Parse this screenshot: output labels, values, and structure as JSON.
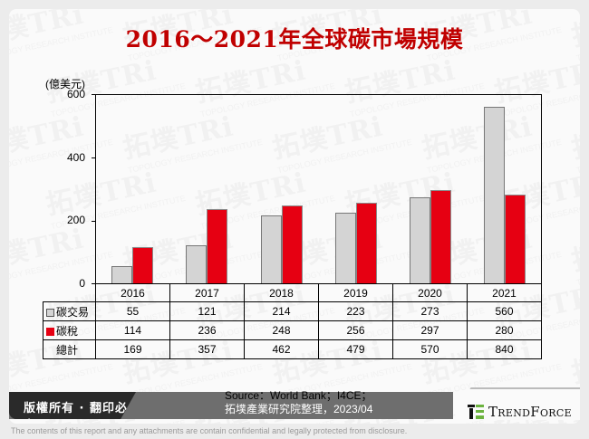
{
  "title": "2016～2021年全球碳市場規模",
  "unit_label": "(億美元)",
  "colors": {
    "title": "#c00000",
    "carbon_trading": "#d4d4d4",
    "carbon_tax": "#e60012",
    "logo_green": "#6cb33f"
  },
  "chart_data": {
    "type": "bar",
    "title": "2016～2021年全球碳市場規模",
    "xlabel": "",
    "ylabel": "(億美元)",
    "ylim": [
      0,
      600
    ],
    "yticks": [
      0,
      200,
      400,
      600
    ],
    "grid": false,
    "legend_position": "table",
    "categories": [
      "2016",
      "2017",
      "2018",
      "2019",
      "2020",
      "2021"
    ],
    "series": [
      {
        "name": "碳交易",
        "color": "#d4d4d4",
        "values": [
          55,
          121,
          214,
          223,
          273,
          560
        ]
      },
      {
        "name": "碳稅",
        "color": "#e60012",
        "values": [
          114,
          236,
          248,
          256,
          297,
          280
        ]
      }
    ],
    "totals": {
      "name": "總計",
      "values": [
        169,
        357,
        462,
        479,
        570,
        840
      ]
    }
  },
  "table": {
    "headers": [
      "2016",
      "2017",
      "2018",
      "2019",
      "2020",
      "2021"
    ],
    "rows": [
      {
        "label": "碳交易",
        "values": [
          "55",
          "121",
          "214",
          "223",
          "273",
          "560"
        ]
      },
      {
        "label": "碳稅",
        "values": [
          "114",
          "236",
          "248",
          "256",
          "297",
          "280"
        ]
      },
      {
        "label": "總計",
        "values": [
          "169",
          "357",
          "462",
          "479",
          "570",
          "840"
        ]
      }
    ]
  },
  "yticks": [
    "600",
    "400",
    "200",
    "0"
  ],
  "footer": {
    "copyright": "版權所有 · 翻印必究",
    "source_line1": "Source：World Bank；I4CE；",
    "source_line2": "拓墣產業研究院整理，2023/04",
    "logo_text": "TrendForce",
    "disclaimer": "The contents of this report and any attachments are contain confidential and legally protected from disclosure."
  },
  "watermark": {
    "text": "拓墣TRi",
    "subtext": "TOPOLOGY RESEARCH INSTITUTE"
  }
}
